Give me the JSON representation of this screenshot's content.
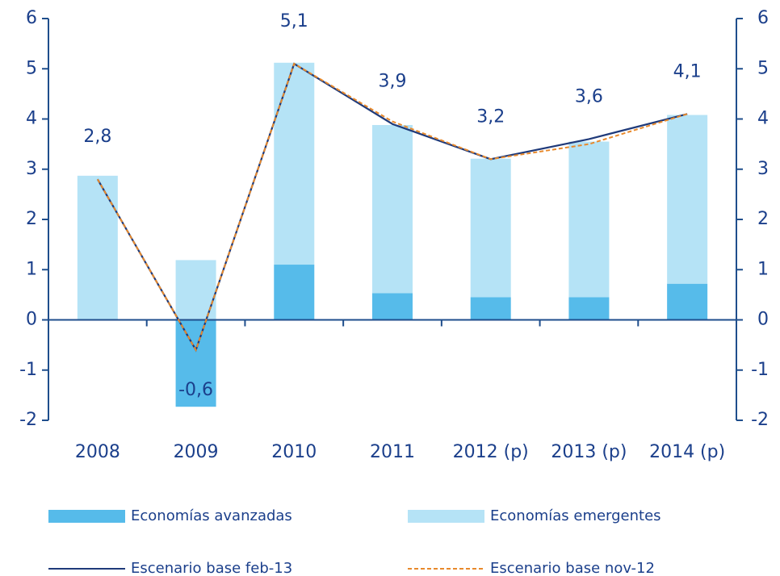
{
  "chart_data": {
    "type": "bar-line",
    "categories": [
      "2008",
      "2009",
      "2010",
      "2011",
      "2012 (p)",
      "2013 (p)",
      "2014 (p)"
    ],
    "series": [
      {
        "name": "Economías avanzadas",
        "type": "bar",
        "color": "#56bbea",
        "values": [
          0,
          -1.73,
          1.1,
          0.53,
          0.45,
          0.45,
          0.72
        ]
      },
      {
        "name": "Economías emergentes",
        "type": "bar",
        "color": "#b5e3f6",
        "values": [
          2.87,
          1.19,
          4.02,
          3.35,
          2.76,
          3.1,
          3.36
        ]
      },
      {
        "name": "Escenario base feb-13",
        "type": "line",
        "color": "#1f3a7a",
        "values": [
          2.8,
          -0.6,
          5.1,
          3.9,
          3.2,
          3.6,
          4.1
        ],
        "value_labels": [
          "2,8",
          "-0,6",
          "5,1",
          "3,9",
          "3,2",
          "3,6",
          "4,1"
        ]
      },
      {
        "name": "Escenario base nov-12",
        "type": "line",
        "dashed": true,
        "color": "#e8892b",
        "values": [
          2.8,
          -0.6,
          5.1,
          3.95,
          3.2,
          3.5,
          4.1
        ]
      }
    ],
    "ylim": [
      -2,
      6
    ],
    "yticks": [
      -2,
      -1,
      0,
      1,
      2,
      3,
      4,
      5,
      6
    ],
    "y2lim": [
      -2,
      6
    ],
    "y2ticks": [
      -2,
      -1,
      0,
      1,
      2,
      3,
      4,
      5,
      6
    ],
    "axis_color": "#1f4e8c"
  }
}
